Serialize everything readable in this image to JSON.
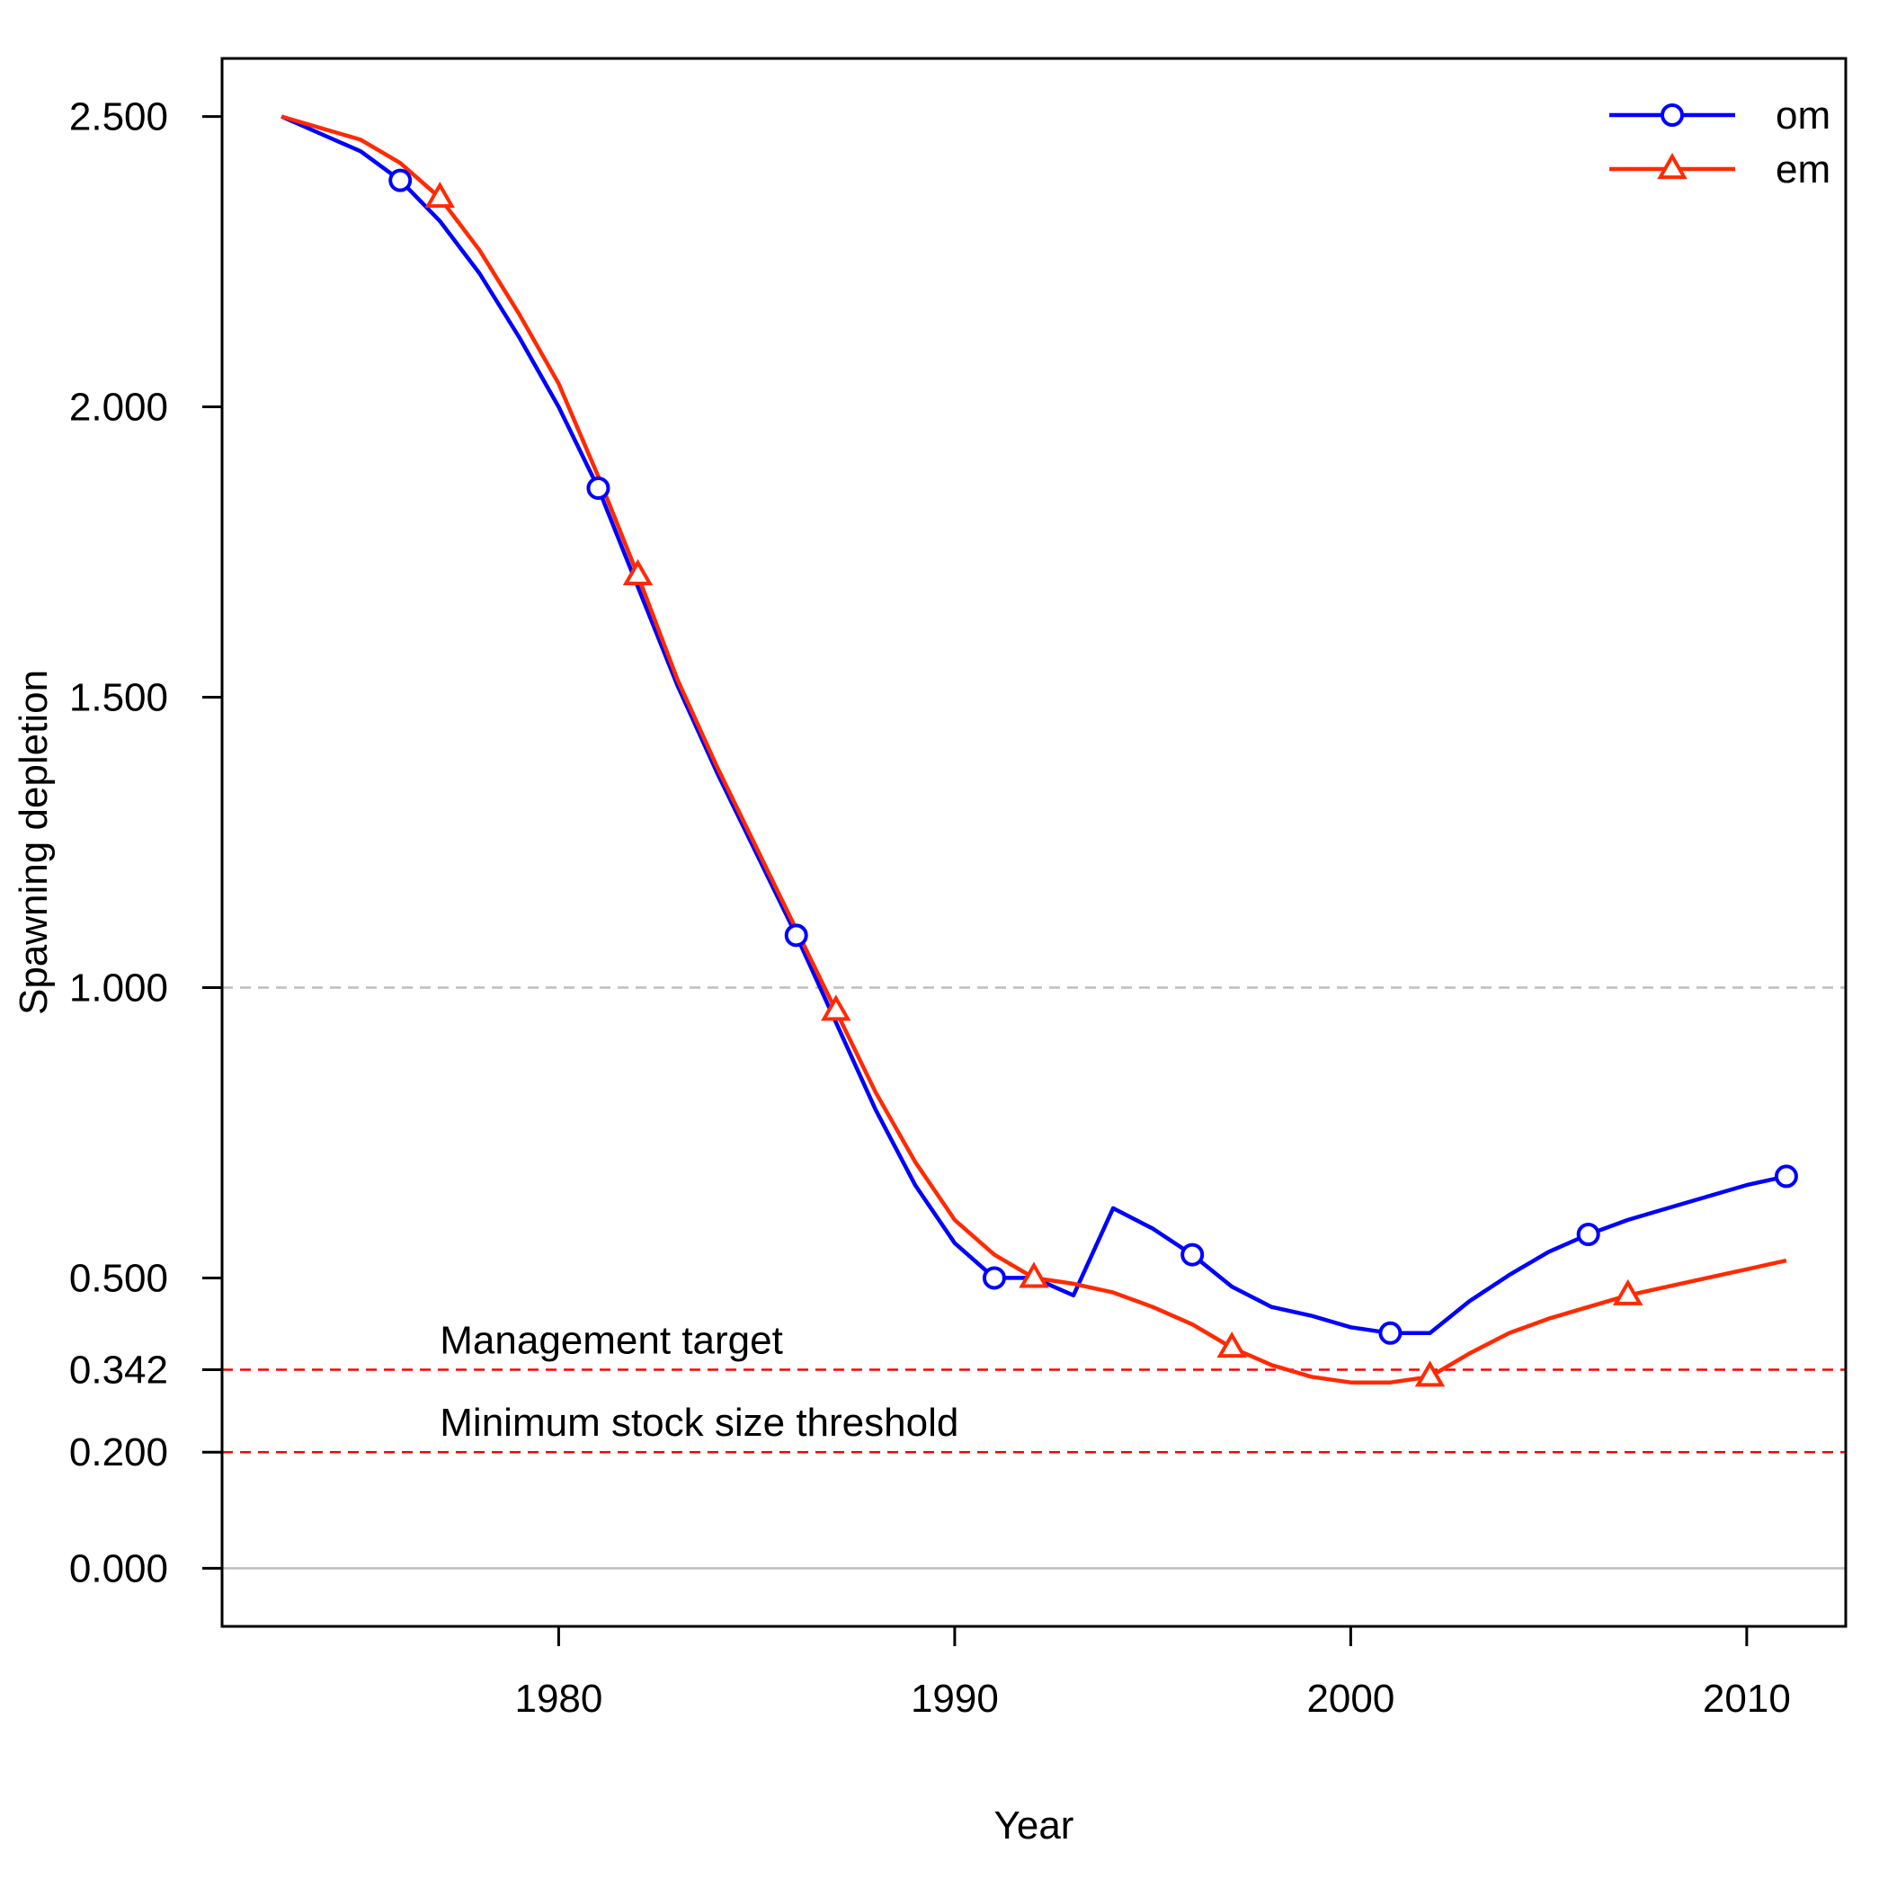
{
  "chart_data": {
    "type": "line",
    "xlabel": "Year",
    "ylabel": "Spawning depletion",
    "xlim": [
      1971.5,
      2012.5
    ],
    "ylim": [
      -0.1,
      2.6
    ],
    "x_ticks": [
      1980,
      1990,
      2000,
      2010
    ],
    "x_tick_labels": [
      "1980",
      "1990",
      "2000",
      "2010"
    ],
    "y_ticks": [
      0.0,
      0.2,
      0.342,
      0.5,
      1.0,
      1.5,
      2.0,
      2.5
    ],
    "y_tick_labels": [
      "0.000",
      "0.200",
      "0.342",
      "0.500",
      "1.000",
      "1.500",
      "2.000",
      "2.500"
    ],
    "x": [
      1973,
      1974,
      1975,
      1976,
      1977,
      1978,
      1979,
      1980,
      1981,
      1982,
      1983,
      1984,
      1985,
      1986,
      1987,
      1988,
      1989,
      1990,
      1991,
      1992,
      1993,
      1994,
      1995,
      1996,
      1997,
      1998,
      1999,
      2000,
      2001,
      2002,
      2003,
      2004,
      2005,
      2006,
      2007,
      2008,
      2009,
      2010,
      2011
    ],
    "series": [
      {
        "name": "om",
        "color": "#0000ff",
        "marker": "circle",
        "marker_every_from": 1976,
        "marker_interval": 5,
        "values": [
          2.5,
          2.47,
          2.44,
          2.39,
          2.32,
          2.23,
          2.12,
          2.0,
          1.86,
          1.69,
          1.52,
          1.37,
          1.23,
          1.09,
          0.94,
          0.79,
          0.66,
          0.56,
          0.5,
          0.5,
          0.47,
          0.62,
          0.585,
          0.54,
          0.485,
          0.45,
          0.435,
          0.415,
          0.405,
          0.405,
          0.46,
          0.505,
          0.545,
          0.575,
          0.6,
          0.62,
          0.64,
          0.66,
          0.675
        ]
      },
      {
        "name": "em",
        "color": "#ff2a00",
        "marker": "triangle",
        "marker_every_from": 1977,
        "marker_interval": 5,
        "values": [
          2.5,
          2.48,
          2.46,
          2.42,
          2.36,
          2.27,
          2.16,
          2.04,
          1.88,
          1.71,
          1.53,
          1.38,
          1.24,
          1.1,
          0.96,
          0.82,
          0.7,
          0.6,
          0.54,
          0.5,
          0.49,
          0.475,
          0.45,
          0.42,
          0.38,
          0.35,
          0.33,
          0.32,
          0.32,
          0.33,
          0.37,
          0.405,
          0.43,
          0.45,
          0.47,
          0.485,
          0.5,
          0.515,
          0.53
        ]
      }
    ],
    "reference_lines": [
      {
        "y": 1.0,
        "color": "#bebebe",
        "style": "dashed",
        "label": ""
      },
      {
        "y": 0.342,
        "color": "#ff0000",
        "style": "dashed",
        "label": "Management target"
      },
      {
        "y": 0.2,
        "color": "#ff0000",
        "style": "dashed",
        "label": "Minimum stock size threshold"
      },
      {
        "y": 0.0,
        "color": "#bebebe",
        "style": "solid",
        "label": ""
      }
    ],
    "legend": {
      "position": "top-right",
      "entries": [
        "om",
        "em"
      ]
    },
    "grid": false
  }
}
